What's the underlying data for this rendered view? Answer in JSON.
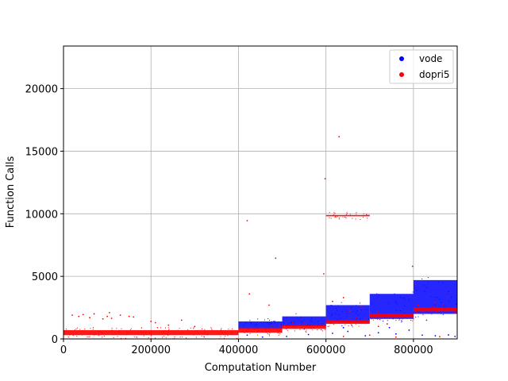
{
  "chart_data": {
    "type": "scatter",
    "xlabel": "Computation Number",
    "ylabel": "Function Calls",
    "xlim": [
      0,
      900000
    ],
    "ylim": [
      0,
      23400
    ],
    "xticks": [
      0,
      200000,
      400000,
      600000,
      800000
    ],
    "yticks": [
      0,
      5000,
      10000,
      15000,
      20000
    ],
    "grid": true,
    "legend_position": "top-right",
    "series": [
      {
        "name": "vode",
        "color": "#0000ff",
        "bands": [
          {
            "x": [
              400000,
              500000
            ],
            "y": [
              800,
              1400
            ]
          },
          {
            "x": [
              500000,
              600000
            ],
            "y": [
              1000,
              1800
            ]
          },
          {
            "x": [
              600000,
              700000
            ],
            "y": [
              1300,
              2700
            ]
          },
          {
            "x": [
              700000,
              800000
            ],
            "y": [
              1600,
              3600
            ]
          },
          {
            "x": [
              800000,
              900000
            ],
            "y": [
              2000,
              4700
            ]
          }
        ],
        "points": [
          [
            420000,
            300
          ],
          [
            455000,
            150
          ],
          [
            510000,
            200
          ],
          [
            560000,
            350
          ],
          [
            615000,
            450
          ],
          [
            650000,
            600
          ],
          [
            690000,
            250
          ],
          [
            720000,
            500
          ],
          [
            760000,
            400
          ],
          [
            790000,
            700
          ],
          [
            820000,
            300
          ],
          [
            850000,
            250
          ],
          [
            880000,
            320
          ],
          [
            895000,
            200
          ],
          [
            745000,
            900
          ],
          [
            640000,
            900
          ]
        ]
      },
      {
        "name": "dopri5",
        "color": "#ff0000",
        "bands": [
          {
            "x": [
              0,
              400000
            ],
            "y": [
              300,
              700
            ]
          },
          {
            "x": [
              400000,
              500000
            ],
            "y": [
              500,
              900
            ]
          },
          {
            "x": [
              500000,
              600000
            ],
            "y": [
              800,
              1100
            ]
          },
          {
            "x": [
              600000,
              700000
            ],
            "y": [
              1200,
              1500
            ]
          },
          {
            "x": [
              600000,
              700000
            ],
            "y": [
              9800,
              9900
            ]
          },
          {
            "x": [
              700000,
              800000
            ],
            "y": [
              1700,
              2000
            ]
          },
          {
            "x": [
              800000,
              900000
            ],
            "y": [
              2200,
              2500
            ]
          }
        ],
        "points": [
          [
            20000,
            1900
          ],
          [
            35000,
            1800
          ],
          [
            45000,
            1950
          ],
          [
            60000,
            1700
          ],
          [
            70000,
            2000
          ],
          [
            90000,
            1600
          ],
          [
            100000,
            1800
          ],
          [
            105000,
            2100
          ],
          [
            110000,
            1650
          ],
          [
            130000,
            1900
          ],
          [
            150000,
            1800
          ],
          [
            160000,
            1750
          ],
          [
            200000,
            1400
          ],
          [
            210000,
            1300
          ],
          [
            240000,
            1100
          ],
          [
            270000,
            1500
          ],
          [
            300000,
            1000
          ],
          [
            420000,
            9450
          ],
          [
            425000,
            3600
          ],
          [
            485000,
            6450
          ],
          [
            470000,
            2700
          ],
          [
            595000,
            5200
          ],
          [
            598000,
            12800
          ],
          [
            630000,
            16150
          ],
          [
            615000,
            3000
          ],
          [
            640000,
            3300
          ],
          [
            655000,
            2200
          ],
          [
            680000,
            2600
          ],
          [
            720000,
            1000
          ],
          [
            740000,
            1200
          ],
          [
            798000,
            5800
          ],
          [
            805000,
            4400
          ],
          [
            810000,
            2700
          ],
          [
            830000,
            1500
          ],
          [
            850000,
            2900
          ],
          [
            880000,
            3500
          ],
          [
            640000,
            200
          ],
          [
            700000,
            300
          ],
          [
            760000,
            150
          ],
          [
            860000,
            180
          ]
        ]
      }
    ]
  }
}
